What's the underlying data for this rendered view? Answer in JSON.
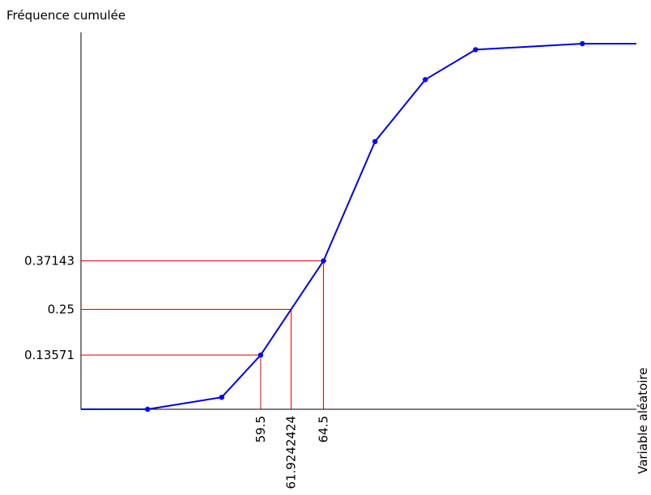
{
  "chart_data": {
    "type": "line",
    "title": "",
    "ylabel": "Fréquence cumulée",
    "xlabel": "Variable aléatoire",
    "points": [
      {
        "x": 50.5,
        "y": 0
      },
      {
        "x": 56.4,
        "y": 0.03
      },
      {
        "x": 59.5,
        "y": 0.13571
      },
      {
        "x": 64.5,
        "y": 0.37143
      },
      {
        "x": 68.6,
        "y": 0.67
      },
      {
        "x": 72.6,
        "y": 0.825
      },
      {
        "x": 76.6,
        "y": 0.9
      },
      {
        "x": 85.1,
        "y": 0.915
      }
    ],
    "tail_x": 89.4,
    "guides": [
      {
        "x": 59.5,
        "y": 0.13571,
        "xlabel": "59.5",
        "ylabel": "0.13571"
      },
      {
        "x": 61.9242424,
        "y": 0.25,
        "xlabel": "61.9242424",
        "ylabel": "0.25",
        "on_curve": false
      },
      {
        "x": 64.5,
        "y": 0.37143,
        "xlabel": "64.5",
        "ylabel": "0.37143"
      }
    ],
    "xlim": [
      45.2,
      89.4
    ],
    "ylim": [
      0,
      1
    ],
    "line_color": "#0000dd",
    "point_color": "#0000ff",
    "guide_color": "#e00000",
    "axis_color": "#000000"
  }
}
